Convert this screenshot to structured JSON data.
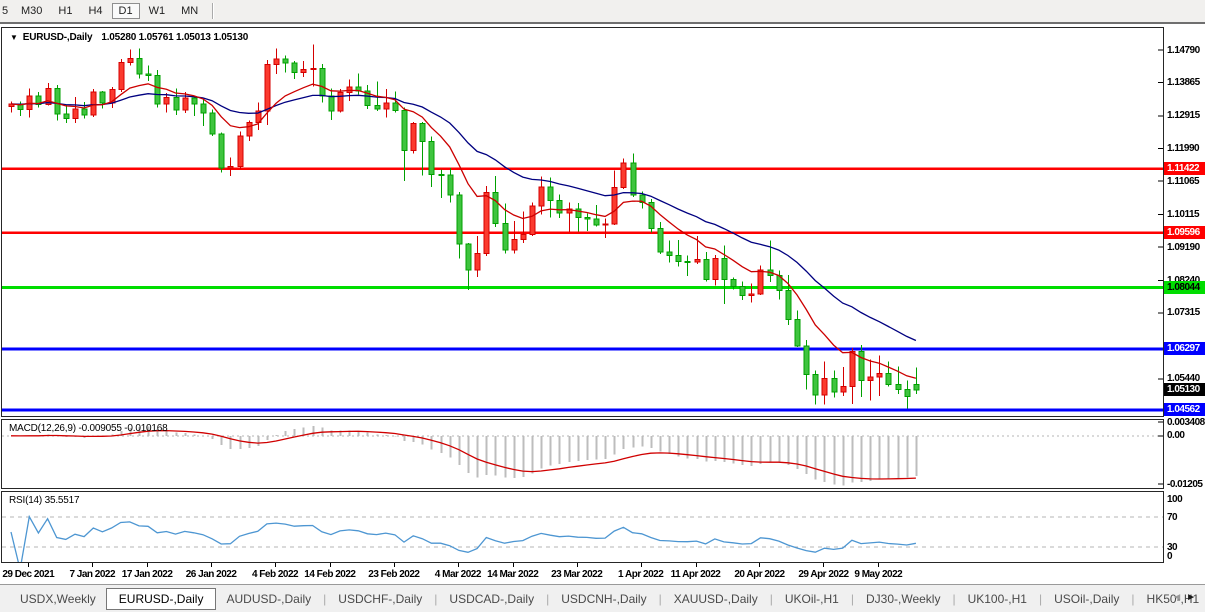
{
  "toolbar": {
    "timeframes": [
      {
        "label": "5",
        "active": false,
        "clipped": true
      },
      {
        "label": "M30",
        "active": false
      },
      {
        "label": "H1",
        "active": false
      },
      {
        "label": "H4",
        "active": false
      },
      {
        "label": "D1",
        "active": true
      },
      {
        "label": "W1",
        "active": false
      },
      {
        "label": "MN",
        "active": false
      }
    ]
  },
  "chart": {
    "title": {
      "arrow": "▼",
      "symbol": "EURUSD-,Daily",
      "ohlc": "1.05280 1.05761 1.05013 1.05130"
    },
    "price_axis": {
      "labels": [
        "1.14790",
        "1.13865",
        "1.12915",
        "1.11990",
        "1.11065",
        "1.10115",
        "1.09190",
        "1.08240",
        "1.07315",
        "1.05440"
      ],
      "badges": [
        {
          "text": "1.11422",
          "bg": "#ff0000",
          "fg": "#ffffff"
        },
        {
          "text": "1.09596",
          "bg": "#ff0000",
          "fg": "#ffffff"
        },
        {
          "text": "1.08044",
          "bg": "#00dd00",
          "fg": "#000000"
        },
        {
          "text": "1.06297",
          "bg": "#0000ff",
          "fg": "#ffffff"
        },
        {
          "text": "1.05130",
          "bg": "#000000",
          "fg": "#ffffff"
        },
        {
          "text": "1.04562",
          "bg": "#0000ff",
          "fg": "#ffffff"
        }
      ]
    },
    "hlines": [
      {
        "price": 1.11422,
        "color": "#ff0000",
        "width": 2.5
      },
      {
        "price": 1.09596,
        "color": "#ff0000",
        "width": 2.5
      },
      {
        "price": 1.08044,
        "color": "#00dd00",
        "width": 3
      },
      {
        "price": 1.06297,
        "color": "#0000ff",
        "width": 3
      },
      {
        "price": 1.04562,
        "color": "#0000ff",
        "width": 3
      }
    ],
    "colors": {
      "up_fill": "#fb3a2e",
      "up_border": "#d40000",
      "down_fill": "#3fc43f",
      "down_border": "#00a000",
      "ma_fast": "#cc0000",
      "ma_slow": "#000080"
    },
    "chart_data": {
      "type": "candlestick",
      "title": "EURUSD- Daily",
      "x_start_label": "29 Dec 2021",
      "x_end_label": "9 May 2022",
      "y_range": [
        1.04385,
        1.15417
      ],
      "overlays": [
        "MA fast (red)",
        "MA slow (navy)"
      ],
      "candles_ohlc": [
        [
          1.1318,
          1.1333,
          1.1301,
          1.1326
        ],
        [
          1.1326,
          1.1333,
          1.1291,
          1.131
        ],
        [
          1.131,
          1.1369,
          1.1287,
          1.1348
        ],
        [
          1.1348,
          1.136,
          1.1316,
          1.1324
        ],
        [
          1.1324,
          1.1386,
          1.1321,
          1.137
        ],
        [
          1.137,
          1.1379,
          1.1279,
          1.1297
        ],
        [
          1.1297,
          1.1323,
          1.1272,
          1.1285
        ],
        [
          1.1285,
          1.1346,
          1.1272,
          1.1312
        ],
        [
          1.1312,
          1.1332,
          1.1285,
          1.1295
        ],
        [
          1.1295,
          1.1368,
          1.1289,
          1.136
        ],
        [
          1.136,
          1.1362,
          1.1313,
          1.1328
        ],
        [
          1.1328,
          1.1374,
          1.1314,
          1.1367
        ],
        [
          1.1367,
          1.1453,
          1.136,
          1.1444
        ],
        [
          1.1444,
          1.1481,
          1.1435,
          1.1455
        ],
        [
          1.1455,
          1.1483,
          1.1398,
          1.1411
        ],
        [
          1.1411,
          1.1435,
          1.1391,
          1.1406
        ],
        [
          1.1406,
          1.1422,
          1.1315,
          1.1326
        ],
        [
          1.1326,
          1.1357,
          1.1302,
          1.1344
        ],
        [
          1.1344,
          1.1369,
          1.1295,
          1.1309
        ],
        [
          1.1309,
          1.136,
          1.13,
          1.1343
        ],
        [
          1.1343,
          1.1349,
          1.1291,
          1.1325
        ],
        [
          1.1325,
          1.134,
          1.1263,
          1.13
        ],
        [
          1.13,
          1.131,
          1.1235,
          1.124
        ],
        [
          1.124,
          1.1245,
          1.1131,
          1.1144
        ],
        [
          1.1144,
          1.1174,
          1.1121,
          1.1148
        ],
        [
          1.1148,
          1.1248,
          1.1141,
          1.1235
        ],
        [
          1.1235,
          1.1279,
          1.1221,
          1.1273
        ],
        [
          1.1273,
          1.133,
          1.1251,
          1.1305
        ],
        [
          1.1305,
          1.1451,
          1.1266,
          1.1438
        ],
        [
          1.1438,
          1.1483,
          1.1411,
          1.1454
        ],
        [
          1.1454,
          1.1463,
          1.1415,
          1.1442
        ],
        [
          1.1442,
          1.1448,
          1.1396,
          1.1415
        ],
        [
          1.1415,
          1.1448,
          1.1403,
          1.1423
        ],
        [
          1.1423,
          1.1495,
          1.1375,
          1.1426
        ],
        [
          1.1426,
          1.144,
          1.133,
          1.1348
        ],
        [
          1.1348,
          1.1369,
          1.128,
          1.1306
        ],
        [
          1.1306,
          1.1368,
          1.1301,
          1.1358
        ],
        [
          1.1358,
          1.1395,
          1.1334,
          1.1374
        ],
        [
          1.1374,
          1.1412,
          1.1353,
          1.1362
        ],
        [
          1.1362,
          1.138,
          1.1312,
          1.1321
        ],
        [
          1.1321,
          1.139,
          1.1305,
          1.1311
        ],
        [
          1.1311,
          1.1368,
          1.1287,
          1.1328
        ],
        [
          1.1328,
          1.1361,
          1.1301,
          1.1307
        ],
        [
          1.1307,
          1.1316,
          1.1106,
          1.1193
        ],
        [
          1.1193,
          1.1274,
          1.1185,
          1.127
        ],
        [
          1.127,
          1.1275,
          1.1122,
          1.1219
        ],
        [
          1.1219,
          1.1233,
          1.109,
          1.1125
        ],
        [
          1.1125,
          1.114,
          1.1058,
          1.1124
        ],
        [
          1.1124,
          1.1143,
          1.1045,
          1.1067
        ],
        [
          1.1067,
          1.1075,
          1.0886,
          1.0927
        ],
        [
          1.0927,
          1.0931,
          1.0797,
          1.0854
        ],
        [
          1.0854,
          1.095,
          1.0834,
          1.0901
        ],
        [
          1.0901,
          1.1093,
          1.0893,
          1.1074
        ],
        [
          1.1074,
          1.1121,
          1.0976,
          1.0986
        ],
        [
          1.0986,
          1.1043,
          1.09,
          1.0911
        ],
        [
          1.0911,
          1.0993,
          1.0901,
          1.0941
        ],
        [
          1.0941,
          1.102,
          1.0931,
          1.0955
        ],
        [
          1.0955,
          1.1046,
          1.095,
          1.1035
        ],
        [
          1.1035,
          1.1119,
          1.1012,
          1.109
        ],
        [
          1.109,
          1.1117,
          1.1003,
          1.1051
        ],
        [
          1.1051,
          1.1069,
          1.1001,
          1.1016
        ],
        [
          1.1016,
          1.1046,
          1.0962,
          1.1027
        ],
        [
          1.1027,
          1.1044,
          1.0963,
          1.1003
        ],
        [
          1.1003,
          1.1014,
          1.0965,
          1.0999
        ],
        [
          1.0999,
          1.1039,
          1.0978,
          1.0982
        ],
        [
          1.0982,
          1.1,
          1.0944,
          1.0984
        ],
        [
          1.0984,
          1.1137,
          1.0982,
          1.1088
        ],
        [
          1.1088,
          1.1171,
          1.1084,
          1.1158
        ],
        [
          1.1158,
          1.1185,
          1.1061,
          1.1067
        ],
        [
          1.1067,
          1.1077,
          1.1028,
          1.1046
        ],
        [
          1.1046,
          1.1056,
          1.096,
          1.0972
        ],
        [
          1.0972,
          1.099,
          1.0899,
          1.0905
        ],
        [
          1.0905,
          1.0938,
          1.0875,
          1.0895
        ],
        [
          1.0895,
          1.0939,
          1.0864,
          1.0878
        ],
        [
          1.0878,
          1.0895,
          1.0836,
          1.0876
        ],
        [
          1.0876,
          1.095,
          1.087,
          1.0883
        ],
        [
          1.0883,
          1.0905,
          1.0821,
          1.0826
        ],
        [
          1.0826,
          1.0896,
          1.0809,
          1.0887
        ],
        [
          1.0887,
          1.0923,
          1.0757,
          1.0827
        ],
        [
          1.0827,
          1.0832,
          1.0798,
          1.0807
        ],
        [
          1.0807,
          1.0821,
          1.0769,
          1.0781
        ],
        [
          1.0781,
          1.0815,
          1.0761,
          1.0785
        ],
        [
          1.0785,
          1.0867,
          1.0782,
          1.0853
        ],
        [
          1.0853,
          1.0937,
          1.082,
          1.0838
        ],
        [
          1.0838,
          1.0852,
          1.077,
          1.0795
        ],
        [
          1.0795,
          1.084,
          1.0697,
          1.0713
        ],
        [
          1.0713,
          1.0738,
          1.0635,
          1.0637
        ],
        [
          1.0637,
          1.0655,
          1.0514,
          1.0556
        ],
        [
          1.0556,
          1.0568,
          1.0471,
          1.0498
        ],
        [
          1.0498,
          1.0593,
          1.0471,
          1.0545
        ],
        [
          1.0545,
          1.0568,
          1.0491,
          1.0507
        ],
        [
          1.0507,
          1.0578,
          1.0495,
          1.0522
        ],
        [
          1.0522,
          1.0632,
          1.0472,
          1.0622
        ],
        [
          1.0622,
          1.0641,
          1.0493,
          1.054
        ],
        [
          1.054,
          1.0599,
          1.0483,
          1.055
        ],
        [
          1.055,
          1.0611,
          1.0495,
          1.056
        ],
        [
          1.056,
          1.0594,
          1.0522,
          1.0528
        ],
        [
          1.0528,
          1.0579,
          1.0501,
          1.0514
        ],
        [
          1.0514,
          1.054,
          1.046,
          1.0494
        ],
        [
          1.0528,
          1.05761,
          1.05013,
          1.0513
        ]
      ]
    }
  },
  "macd": {
    "label": "MACD(12,26,9) -0.009055 -0.010168",
    "axis_labels": [
      {
        "text": "0.003408",
        "value": 0.003408
      },
      {
        "text": "0.00",
        "value": 0
      },
      {
        "text": "-0.01205",
        "value": -0.01205
      }
    ],
    "hist_color": "#bdbdbd",
    "signal_color": "#d00000",
    "zero_color": "#b4b4b4"
  },
  "rsi": {
    "label": "RSI(14) 35.5517",
    "axis_labels": [
      {
        "text": "100",
        "value": 100
      },
      {
        "text": "70",
        "value": 70
      },
      {
        "text": "30",
        "value": 30
      },
      {
        "text": "0",
        "value": 0
      }
    ],
    "levels": [
      70,
      30
    ],
    "line_color": "#4d96d2",
    "level_color": "#b4b4b4"
  },
  "date_axis": {
    "labels": [
      {
        "text": "29 Dec 2021",
        "i": 2
      },
      {
        "text": "7 Jan 2022",
        "i": 9
      },
      {
        "text": "17 Jan 2022",
        "i": 15
      },
      {
        "text": "26 Jan 2022",
        "i": 22
      },
      {
        "text": "4 Feb 2022",
        "i": 29
      },
      {
        "text": "14 Feb 2022",
        "i": 35
      },
      {
        "text": "23 Feb 2022",
        "i": 42
      },
      {
        "text": "4 Mar 2022",
        "i": 49
      },
      {
        "text": "14 Mar 2022",
        "i": 55
      },
      {
        "text": "23 Mar 2022",
        "i": 62
      },
      {
        "text": "1 Apr 2022",
        "i": 69
      },
      {
        "text": "11 Apr 2022",
        "i": 75
      },
      {
        "text": "20 Apr 2022",
        "i": 82
      },
      {
        "text": "29 Apr 2022",
        "i": 89
      },
      {
        "text": "9 May 2022",
        "i": 95
      }
    ]
  },
  "tabs": {
    "items": [
      {
        "label": "USDX,Weekly",
        "active": false
      },
      {
        "label": "EURUSD-,Daily",
        "active": true
      },
      {
        "label": "AUDUSD-,Daily",
        "active": false
      },
      {
        "label": "USDCHF-,Daily",
        "active": false
      },
      {
        "label": "USDCAD-,Daily",
        "active": false
      },
      {
        "label": "USDCNH-,Daily",
        "active": false
      },
      {
        "label": "XAUUSD-,Daily",
        "active": false
      },
      {
        "label": "UKOil-,H1",
        "active": false
      },
      {
        "label": "DJ30-,Weekly",
        "active": false
      },
      {
        "label": "UK100-,H1",
        "active": false
      },
      {
        "label": "USOil-,Daily",
        "active": false
      },
      {
        "label": "HK50-,H1",
        "active": false
      }
    ],
    "scroll_left": "◄",
    "scroll_right": "►"
  }
}
